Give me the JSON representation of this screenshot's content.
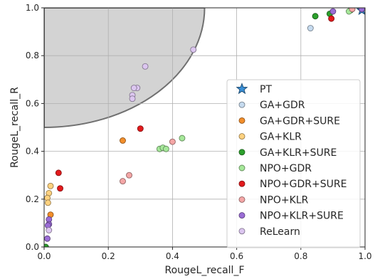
{
  "chart_data": {
    "type": "scatter",
    "xlabel": "RougeL_recall_F",
    "ylabel": "RougeL_recall_R",
    "xlim": [
      0,
      1
    ],
    "ylim": [
      0,
      1
    ],
    "grid": true,
    "legend_position": "lower-right",
    "x_ticks": [
      "0.0",
      "0.2",
      "0.4",
      "0.6",
      "0.8",
      "1.0"
    ],
    "y_ticks": [
      "0.0",
      "0.2",
      "0.4",
      "0.6",
      "0.8",
      "1.0"
    ],
    "shaded_region": {
      "shape": "quarter-circle",
      "center": [
        0,
        1
      ],
      "radius": 0.5,
      "color": "#d3d3d3"
    },
    "series": [
      {
        "name": "PT",
        "marker": "star",
        "color": "#3a8fd6",
        "points": [
          [
            0.99,
            0.99
          ]
        ]
      },
      {
        "name": "GA+GDR",
        "marker": "circle",
        "color": "#c6dbef",
        "points": [
          [
            0.83,
            0.915
          ]
        ]
      },
      {
        "name": "GA+GDR+SURE",
        "marker": "circle",
        "color": "#f28e2b",
        "points": [
          [
            0.245,
            0.445
          ],
          [
            0.02,
            0.135
          ],
          [
            0.96,
            0.995
          ]
        ]
      },
      {
        "name": "GA+KLR",
        "marker": "circle",
        "color": "#ffd27f",
        "points": [
          [
            0.02,
            0.255
          ],
          [
            0.015,
            0.225
          ],
          [
            0.01,
            0.205
          ],
          [
            0.012,
            0.185
          ]
        ]
      },
      {
        "name": "GA+KLR+SURE",
        "marker": "circle",
        "color": "#2ca02c",
        "points": [
          [
            0.845,
            0.965
          ],
          [
            0.89,
            0.975
          ],
          [
            0.955,
            0.99
          ],
          [
            0.005,
            0.0
          ]
        ]
      },
      {
        "name": "NPO+GDR",
        "marker": "circle",
        "color": "#a6e89a",
        "points": [
          [
            0.36,
            0.41
          ],
          [
            0.37,
            0.415
          ],
          [
            0.38,
            0.41
          ],
          [
            0.43,
            0.455
          ],
          [
            0.95,
            0.985
          ]
        ]
      },
      {
        "name": "NPO+GDR+SURE",
        "marker": "circle",
        "color": "#e31a1c",
        "points": [
          [
            0.045,
            0.31
          ],
          [
            0.05,
            0.245
          ],
          [
            0.3,
            0.495
          ],
          [
            0.895,
            0.955
          ]
        ]
      },
      {
        "name": "NPO+KLR",
        "marker": "circle",
        "color": "#f4a6a6",
        "points": [
          [
            0.245,
            0.275
          ],
          [
            0.265,
            0.3
          ],
          [
            0.4,
            0.44
          ],
          [
            0.96,
            0.995
          ]
        ]
      },
      {
        "name": "NPO+KLR+SURE",
        "marker": "circle",
        "color": "#9b6dd6",
        "points": [
          [
            0.015,
            0.115
          ],
          [
            0.015,
            0.095
          ],
          [
            0.012,
            0.09
          ],
          [
            0.01,
            0.035
          ],
          [
            0.9,
            0.985
          ],
          [
            0.99,
            0.995
          ]
        ]
      },
      {
        "name": "ReLearn",
        "marker": "circle",
        "color": "#dcc6f0",
        "points": [
          [
            0.465,
            0.825
          ],
          [
            0.315,
            0.755
          ],
          [
            0.29,
            0.665
          ],
          [
            0.28,
            0.665
          ],
          [
            0.275,
            0.635
          ],
          [
            0.275,
            0.62
          ],
          [
            0.015,
            0.07
          ]
        ]
      }
    ]
  }
}
